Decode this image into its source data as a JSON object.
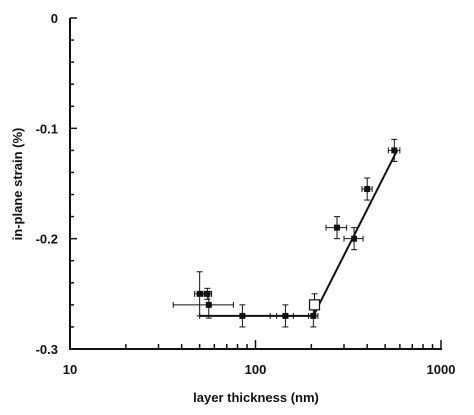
{
  "chart_data": {
    "type": "scatter",
    "title": "",
    "xlabel": "layer thickness (nm)",
    "ylabel": "in-plane strain (%)",
    "x_scale": "log",
    "xlim": [
      10,
      1000
    ],
    "ylim": [
      -0.3,
      0
    ],
    "x_tick_labels": [
      "10",
      "100",
      "1000"
    ],
    "y_tick_labels": [
      "0",
      "-0.1",
      "-0.2",
      "-0.3"
    ],
    "x_tick_values": [
      10,
      100,
      1000
    ],
    "y_tick_values": [
      0,
      -0.1,
      -0.2,
      -0.3
    ],
    "grid": false,
    "legend": "none",
    "colors": {
      "marker": "#111111",
      "line": "#111111"
    },
    "points": [
      {
        "x": 50,
        "y": -0.25,
        "xerr": [
          3,
          3
        ],
        "yerr": [
          0.02,
          0.02
        ],
        "marker": "filled-square"
      },
      {
        "x": 55,
        "y": -0.25,
        "xerr": [
          3,
          3
        ],
        "yerr": [
          0.005,
          0.005
        ],
        "marker": "filled-square"
      },
      {
        "x": 56,
        "y": -0.26,
        "xerr": [
          20,
          20
        ],
        "yerr": [
          0.012,
          0.012
        ],
        "marker": "filled-square"
      },
      {
        "x": 85,
        "y": -0.27,
        "xerr": [
          35,
          35
        ],
        "yerr": [
          0.01,
          0.01
        ],
        "marker": "filled-square"
      },
      {
        "x": 145,
        "y": -0.27,
        "xerr": [
          15,
          15
        ],
        "yerr": [
          0.01,
          0.01
        ],
        "marker": "filled-square"
      },
      {
        "x": 205,
        "y": -0.27,
        "xerr": [
          12,
          12
        ],
        "yerr": [
          0.01,
          0.01
        ],
        "marker": "filled-square"
      },
      {
        "x": 208,
        "y": -0.26,
        "xerr": [
          8,
          8
        ],
        "yerr": [
          0.01,
          0.01
        ],
        "marker": "open-square"
      },
      {
        "x": 275,
        "y": -0.19,
        "xerr": [
          35,
          35
        ],
        "yerr": [
          0.01,
          0.01
        ],
        "marker": "filled-square"
      },
      {
        "x": 340,
        "y": -0.2,
        "xerr": [
          40,
          40
        ],
        "yerr": [
          0.01,
          0.01
        ],
        "marker": "filled-square"
      },
      {
        "x": 400,
        "y": -0.155,
        "xerr": [
          25,
          25
        ],
        "yerr": [
          0.01,
          0.01
        ],
        "marker": "filled-square"
      },
      {
        "x": 560,
        "y": -0.12,
        "xerr": [
          40,
          40
        ],
        "yerr": [
          0.01,
          0.01
        ],
        "marker": "filled-square"
      }
    ],
    "fit_line": [
      {
        "x": 50,
        "y": -0.27
      },
      {
        "x": 205,
        "y": -0.27
      },
      {
        "x": 580,
        "y": -0.12
      }
    ]
  }
}
